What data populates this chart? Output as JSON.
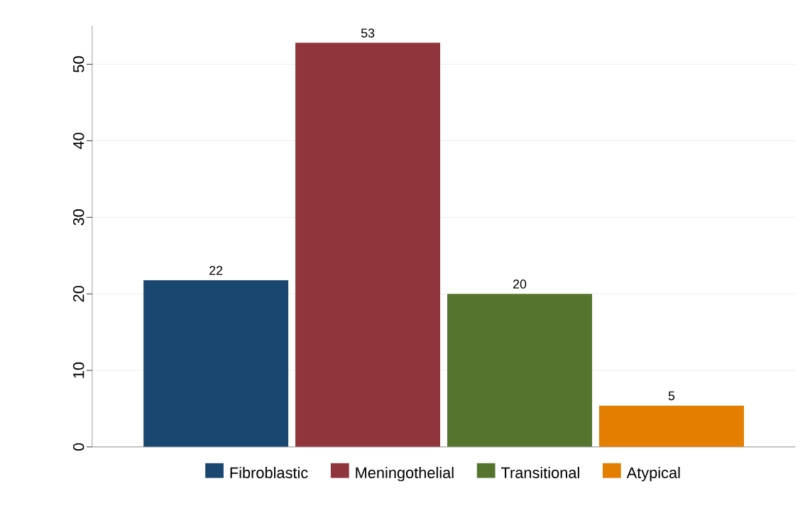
{
  "chart_data": {
    "type": "bar",
    "categories": [
      null
    ],
    "series": [
      {
        "name": "Fibroblastic",
        "color": "#1a476f",
        "values": [
          21.8
        ],
        "value_labels": [
          "22"
        ]
      },
      {
        "name": "Meningothelial",
        "color": "#90353b",
        "values": [
          52.8
        ],
        "value_labels": [
          "53"
        ]
      },
      {
        "name": "Transitional",
        "color": "#55752f",
        "values": [
          20.0
        ],
        "value_labels": [
          "20"
        ]
      },
      {
        "name": "Atypical",
        "color": "#e37e00",
        "values": [
          5.4
        ],
        "value_labels": [
          "5"
        ]
      }
    ],
    "ylim": [
      0,
      55
    ],
    "yticks": [
      0,
      10,
      20,
      30,
      40,
      50
    ],
    "grid": "y",
    "legend": "bottom"
  }
}
